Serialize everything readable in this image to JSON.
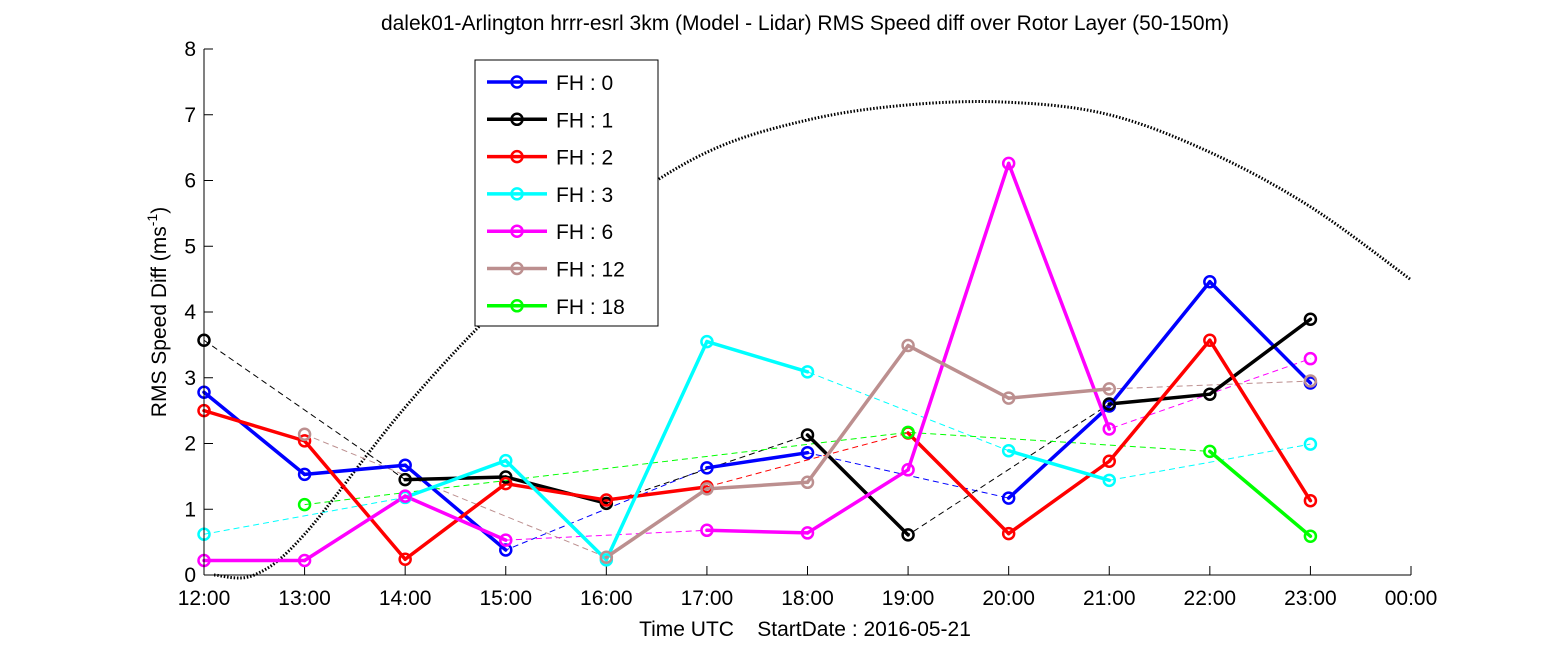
{
  "chart_data": {
    "type": "line",
    "title": "dalek01-Arlington hrrr-esrl 3km (Model - Lidar) RMS Speed diff over Rotor Layer (50-150m)",
    "xlabel": "Time UTC    StartDate : 2016-05-21",
    "ylabel_main": "RMS Speed Diff (ms",
    "ylabel_sup": "-1",
    "ylabel_close": ")",
    "ylim": [
      0,
      8
    ],
    "yticks": [
      "0",
      "1",
      "2",
      "3",
      "4",
      "5",
      "6",
      "7",
      "8"
    ],
    "xlim": [
      12,
      24
    ],
    "xticks": [
      "12:00",
      "13:00",
      "14:00",
      "15:00",
      "16:00",
      "17:00",
      "18:00",
      "19:00",
      "20:00",
      "21:00",
      "22:00",
      "23:00",
      "00:00"
    ],
    "legend_position": "top-left",
    "series": [
      {
        "name": "FH : 0",
        "color": "#0000ff",
        "points": [
          [
            12,
            2.78
          ],
          [
            13,
            1.53
          ],
          [
            14,
            1.67
          ],
          [
            15,
            0.38
          ],
          [
            17,
            1.63
          ],
          [
            18,
            1.86
          ],
          [
            20,
            1.17
          ],
          [
            21,
            2.57
          ],
          [
            22,
            4.46
          ],
          [
            23,
            2.92
          ]
        ]
      },
      {
        "name": "FH : 1",
        "color": "#000000",
        "points": [
          [
            12,
            3.57
          ],
          [
            14,
            1.45
          ],
          [
            15,
            1.49
          ],
          [
            16,
            1.09
          ],
          [
            18,
            2.13
          ],
          [
            19,
            0.61
          ],
          [
            21,
            2.6
          ],
          [
            22,
            2.75
          ],
          [
            23,
            3.89
          ]
        ]
      },
      {
        "name": "FH : 2",
        "color": "#ff0000",
        "points": [
          [
            12,
            2.5
          ],
          [
            13,
            2.04
          ],
          [
            14,
            0.24
          ],
          [
            15,
            1.39
          ],
          [
            16,
            1.14
          ],
          [
            17,
            1.34
          ],
          [
            19,
            2.16
          ],
          [
            20,
            0.63
          ],
          [
            21,
            1.73
          ],
          [
            22,
            3.57
          ],
          [
            23,
            1.13
          ]
        ]
      },
      {
        "name": "FH : 3",
        "color": "#00ffff",
        "points": [
          [
            12,
            0.62
          ],
          [
            14,
            1.18
          ],
          [
            15,
            1.74
          ],
          [
            16,
            0.23
          ],
          [
            17,
            3.55
          ],
          [
            18,
            3.09
          ],
          [
            20,
            1.89
          ],
          [
            21,
            1.44
          ],
          [
            23,
            1.99
          ]
        ]
      },
      {
        "name": "FH : 6",
        "color": "#ff00ff",
        "points": [
          [
            12,
            0.22
          ],
          [
            13,
            0.22
          ],
          [
            14,
            1.2
          ],
          [
            15,
            0.53
          ],
          [
            17,
            0.68
          ],
          [
            18,
            0.64
          ],
          [
            19,
            1.6
          ],
          [
            20,
            6.26
          ],
          [
            21,
            2.22
          ],
          [
            23,
            3.29
          ]
        ]
      },
      {
        "name": "FH : 12",
        "color": "#bc8f8f",
        "points": [
          [
            13,
            2.14
          ],
          [
            16,
            0.27
          ],
          [
            17,
            1.31
          ],
          [
            18,
            1.41
          ],
          [
            19,
            3.49
          ],
          [
            20,
            2.69
          ],
          [
            21,
            2.83
          ],
          [
            23,
            2.95
          ]
        ]
      },
      {
        "name": "FH : 18",
        "color": "#00ff00",
        "points": [
          [
            13,
            1.07
          ],
          [
            19,
            2.17
          ],
          [
            22,
            1.88
          ],
          [
            23,
            0.59
          ]
        ]
      }
    ],
    "reference_curve": {
      "style": "dotted",
      "color": "#000000",
      "peak": [
        19.9,
        7.2
      ],
      "points": [
        [
          12.1,
          0.0
        ],
        [
          12.5,
          0.0
        ],
        [
          13,
          0.62
        ],
        [
          14,
          2.55
        ],
        [
          15,
          4.18
        ],
        [
          16,
          5.47
        ],
        [
          17,
          6.43
        ],
        [
          18,
          6.92
        ],
        [
          19,
          7.15
        ],
        [
          20,
          7.19
        ],
        [
          21,
          7.0
        ],
        [
          22,
          6.43
        ],
        [
          23,
          5.6
        ],
        [
          24,
          4.49
        ]
      ]
    }
  }
}
